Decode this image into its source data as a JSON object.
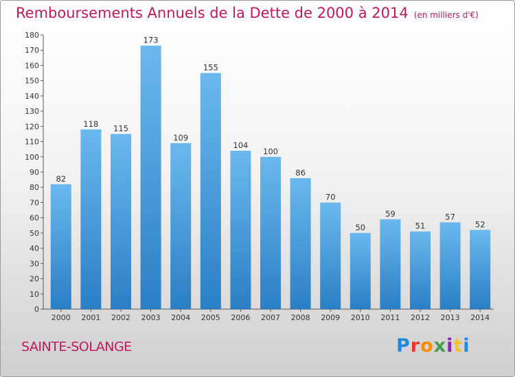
{
  "header": {
    "title": "Remboursements Annuels de la Dette de 2000 à 2014",
    "subtitle": "(en milliers d'€)"
  },
  "footer": {
    "commune": "SAINTE-SOLANGE",
    "logo_letters": [
      "P",
      "r",
      "o",
      "x",
      "i",
      "t",
      "i"
    ]
  },
  "colors": {
    "title": "#c2185b",
    "bar_light": "#6ab8ee",
    "bar_dark": "#2a7fc4"
  },
  "chart_data": {
    "type": "bar",
    "title": "Remboursements Annuels de la Dette de 2000 à 2014",
    "xlabel": "",
    "ylabel": "",
    "categories": [
      "2000",
      "2001",
      "2002",
      "2003",
      "2004",
      "2005",
      "2006",
      "2007",
      "2008",
      "2009",
      "2010",
      "2011",
      "2012",
      "2013",
      "2014"
    ],
    "values": [
      82,
      118,
      115,
      173,
      109,
      155,
      104,
      100,
      86,
      70,
      50,
      59,
      51,
      57,
      52
    ],
    "ylim": [
      0,
      180
    ],
    "yticks": [
      0,
      10,
      20,
      30,
      40,
      50,
      60,
      70,
      80,
      90,
      100,
      110,
      120,
      130,
      140,
      150,
      160,
      170,
      180
    ],
    "grid": false
  }
}
